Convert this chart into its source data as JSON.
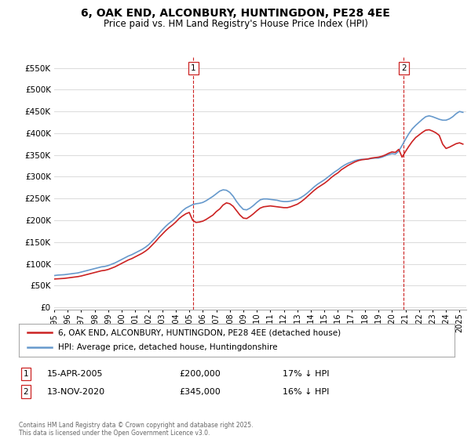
{
  "title": "6, OAK END, ALCONBURY, HUNTINGDON, PE28 4EE",
  "subtitle": "Price paid vs. HM Land Registry's House Price Index (HPI)",
  "background_color": "#ffffff",
  "plot_bg_color": "#ffffff",
  "grid_color": "#dddddd",
  "sale1_date": "15-APR-2005",
  "sale1_price": 200000,
  "sale1_hpi_diff": "17% ↓ HPI",
  "sale2_date": "13-NOV-2020",
  "sale2_price": 345000,
  "sale2_hpi_diff": "16% ↓ HPI",
  "yticks": [
    0,
    50000,
    100000,
    150000,
    200000,
    250000,
    300000,
    350000,
    400000,
    450000,
    500000,
    550000
  ],
  "ylim": [
    -5000,
    575000
  ],
  "xlim_start": 1995.0,
  "xlim_end": 2025.5,
  "xtick_years": [
    1995,
    1996,
    1997,
    1998,
    1999,
    2000,
    2001,
    2002,
    2003,
    2004,
    2005,
    2006,
    2007,
    2008,
    2009,
    2010,
    2011,
    2012,
    2013,
    2014,
    2015,
    2016,
    2017,
    2018,
    2019,
    2020,
    2021,
    2022,
    2023,
    2024,
    2025
  ],
  "hpi_color": "#6699cc",
  "price_color": "#cc2222",
  "vline_color": "#cc2222",
  "sale1_x": 2005.29,
  "sale2_x": 2020.87,
  "legend_label_price": "6, OAK END, ALCONBURY, HUNTINGDON, PE28 4EE (detached house)",
  "legend_label_hpi": "HPI: Average price, detached house, Huntingdonshire",
  "footer": "Contains HM Land Registry data © Crown copyright and database right 2025.\nThis data is licensed under the Open Government Licence v3.0.",
  "hpi_data": [
    [
      1995.0,
      73000
    ],
    [
      1995.25,
      74000
    ],
    [
      1995.5,
      74500
    ],
    [
      1995.75,
      75000
    ],
    [
      1996.0,
      76000
    ],
    [
      1996.25,
      77000
    ],
    [
      1996.5,
      78000
    ],
    [
      1996.75,
      79000
    ],
    [
      1997.0,
      81000
    ],
    [
      1997.25,
      83000
    ],
    [
      1997.5,
      85000
    ],
    [
      1997.75,
      87000
    ],
    [
      1998.0,
      89000
    ],
    [
      1998.25,
      91000
    ],
    [
      1998.5,
      93000
    ],
    [
      1998.75,
      94000
    ],
    [
      1999.0,
      96000
    ],
    [
      1999.25,
      99000
    ],
    [
      1999.5,
      102000
    ],
    [
      1999.75,
      106000
    ],
    [
      2000.0,
      110000
    ],
    [
      2000.25,
      114000
    ],
    [
      2000.5,
      118000
    ],
    [
      2000.75,
      121000
    ],
    [
      2001.0,
      125000
    ],
    [
      2001.25,
      129000
    ],
    [
      2001.5,
      133000
    ],
    [
      2001.75,
      138000
    ],
    [
      2002.0,
      144000
    ],
    [
      2002.25,
      152000
    ],
    [
      2002.5,
      160000
    ],
    [
      2002.75,
      169000
    ],
    [
      2003.0,
      178000
    ],
    [
      2003.25,
      186000
    ],
    [
      2003.5,
      193000
    ],
    [
      2003.75,
      199000
    ],
    [
      2004.0,
      206000
    ],
    [
      2004.25,
      214000
    ],
    [
      2004.5,
      222000
    ],
    [
      2004.75,
      228000
    ],
    [
      2005.0,
      232000
    ],
    [
      2005.25,
      236000
    ],
    [
      2005.5,
      238000
    ],
    [
      2005.75,
      239000
    ],
    [
      2006.0,
      241000
    ],
    [
      2006.25,
      245000
    ],
    [
      2006.5,
      250000
    ],
    [
      2006.75,
      255000
    ],
    [
      2007.0,
      261000
    ],
    [
      2007.25,
      267000
    ],
    [
      2007.5,
      270000
    ],
    [
      2007.75,
      269000
    ],
    [
      2008.0,
      264000
    ],
    [
      2008.25,
      255000
    ],
    [
      2008.5,
      243000
    ],
    [
      2008.75,
      233000
    ],
    [
      2009.0,
      225000
    ],
    [
      2009.25,
      224000
    ],
    [
      2009.5,
      228000
    ],
    [
      2009.75,
      234000
    ],
    [
      2010.0,
      241000
    ],
    [
      2010.25,
      247000
    ],
    [
      2010.5,
      249000
    ],
    [
      2010.75,
      249000
    ],
    [
      2011.0,
      248000
    ],
    [
      2011.25,
      247000
    ],
    [
      2011.5,
      246000
    ],
    [
      2011.75,
      244000
    ],
    [
      2012.0,
      243000
    ],
    [
      2012.25,
      243000
    ],
    [
      2012.5,
      244000
    ],
    [
      2012.75,
      246000
    ],
    [
      2013.0,
      248000
    ],
    [
      2013.25,
      252000
    ],
    [
      2013.5,
      257000
    ],
    [
      2013.75,
      263000
    ],
    [
      2014.0,
      270000
    ],
    [
      2014.25,
      277000
    ],
    [
      2014.5,
      283000
    ],
    [
      2014.75,
      288000
    ],
    [
      2015.0,
      293000
    ],
    [
      2015.25,
      299000
    ],
    [
      2015.5,
      305000
    ],
    [
      2015.75,
      311000
    ],
    [
      2016.0,
      316000
    ],
    [
      2016.25,
      322000
    ],
    [
      2016.5,
      327000
    ],
    [
      2016.75,
      331000
    ],
    [
      2017.0,
      334000
    ],
    [
      2017.25,
      337000
    ],
    [
      2017.5,
      339000
    ],
    [
      2017.75,
      340000
    ],
    [
      2018.0,
      340000
    ],
    [
      2018.25,
      341000
    ],
    [
      2018.5,
      342000
    ],
    [
      2018.75,
      343000
    ],
    [
      2019.0,
      343000
    ],
    [
      2019.25,
      345000
    ],
    [
      2019.5,
      348000
    ],
    [
      2019.75,
      351000
    ],
    [
      2020.0,
      353000
    ],
    [
      2020.25,
      352000
    ],
    [
      2020.5,
      359000
    ],
    [
      2020.75,
      372000
    ],
    [
      2021.0,
      386000
    ],
    [
      2021.25,
      399000
    ],
    [
      2021.5,
      410000
    ],
    [
      2021.75,
      418000
    ],
    [
      2022.0,
      425000
    ],
    [
      2022.25,
      432000
    ],
    [
      2022.5,
      438000
    ],
    [
      2022.75,
      440000
    ],
    [
      2023.0,
      438000
    ],
    [
      2023.25,
      435000
    ],
    [
      2023.5,
      432000
    ],
    [
      2023.75,
      430000
    ],
    [
      2024.0,
      430000
    ],
    [
      2024.25,
      433000
    ],
    [
      2024.5,
      438000
    ],
    [
      2024.75,
      445000
    ],
    [
      2025.0,
      450000
    ],
    [
      2025.25,
      448000
    ]
  ],
  "price_data": [
    [
      1995.0,
      65000
    ],
    [
      1995.25,
      65500
    ],
    [
      1995.5,
      66000
    ],
    [
      1995.75,
      66500
    ],
    [
      1996.0,
      67500
    ],
    [
      1996.25,
      68500
    ],
    [
      1996.5,
      69500
    ],
    [
      1996.75,
      70500
    ],
    [
      1997.0,
      72000
    ],
    [
      1997.25,
      74000
    ],
    [
      1997.5,
      76000
    ],
    [
      1997.75,
      78000
    ],
    [
      1998.0,
      80000
    ],
    [
      1998.25,
      82000
    ],
    [
      1998.5,
      84000
    ],
    [
      1998.75,
      85000
    ],
    [
      1999.0,
      87000
    ],
    [
      1999.25,
      90000
    ],
    [
      1999.5,
      93000
    ],
    [
      1999.75,
      97000
    ],
    [
      2000.0,
      101000
    ],
    [
      2000.25,
      105000
    ],
    [
      2000.5,
      109000
    ],
    [
      2000.75,
      112000
    ],
    [
      2001.0,
      116000
    ],
    [
      2001.25,
      120000
    ],
    [
      2001.5,
      124000
    ],
    [
      2001.75,
      129000
    ],
    [
      2002.0,
      135000
    ],
    [
      2002.25,
      143000
    ],
    [
      2002.5,
      151000
    ],
    [
      2002.75,
      160000
    ],
    [
      2003.0,
      168000
    ],
    [
      2003.25,
      176000
    ],
    [
      2003.5,
      183000
    ],
    [
      2003.75,
      189000
    ],
    [
      2004.0,
      196000
    ],
    [
      2004.25,
      204000
    ],
    [
      2004.5,
      210000
    ],
    [
      2004.75,
      215000
    ],
    [
      2005.0,
      218000
    ],
    [
      2005.25,
      200000
    ],
    [
      2005.5,
      195000
    ],
    [
      2005.75,
      196000
    ],
    [
      2006.0,
      198000
    ],
    [
      2006.25,
      202000
    ],
    [
      2006.5,
      207000
    ],
    [
      2006.75,
      212000
    ],
    [
      2007.0,
      220000
    ],
    [
      2007.25,
      226000
    ],
    [
      2007.5,
      235000
    ],
    [
      2007.75,
      240000
    ],
    [
      2008.0,
      238000
    ],
    [
      2008.25,
      232000
    ],
    [
      2008.5,
      222000
    ],
    [
      2008.75,
      212000
    ],
    [
      2009.0,
      205000
    ],
    [
      2009.25,
      204000
    ],
    [
      2009.5,
      209000
    ],
    [
      2009.75,
      215000
    ],
    [
      2010.0,
      222000
    ],
    [
      2010.25,
      228000
    ],
    [
      2010.5,
      231000
    ],
    [
      2010.75,
      232000
    ],
    [
      2011.0,
      233000
    ],
    [
      2011.25,
      232000
    ],
    [
      2011.5,
      231000
    ],
    [
      2011.75,
      230000
    ],
    [
      2012.0,
      229000
    ],
    [
      2012.25,
      229000
    ],
    [
      2012.5,
      231000
    ],
    [
      2012.75,
      234000
    ],
    [
      2013.0,
      237000
    ],
    [
      2013.25,
      242000
    ],
    [
      2013.5,
      248000
    ],
    [
      2013.75,
      255000
    ],
    [
      2014.0,
      262000
    ],
    [
      2014.25,
      269000
    ],
    [
      2014.5,
      275000
    ],
    [
      2014.75,
      280000
    ],
    [
      2015.0,
      285000
    ],
    [
      2015.25,
      291000
    ],
    [
      2015.5,
      298000
    ],
    [
      2015.75,
      304000
    ],
    [
      2016.0,
      309000
    ],
    [
      2016.25,
      316000
    ],
    [
      2016.5,
      321000
    ],
    [
      2016.75,
      326000
    ],
    [
      2017.0,
      330000
    ],
    [
      2017.25,
      334000
    ],
    [
      2017.5,
      337000
    ],
    [
      2017.75,
      339000
    ],
    [
      2018.0,
      340000
    ],
    [
      2018.25,
      341000
    ],
    [
      2018.5,
      343000
    ],
    [
      2018.75,
      344000
    ],
    [
      2019.0,
      345000
    ],
    [
      2019.25,
      347000
    ],
    [
      2019.5,
      350000
    ],
    [
      2019.75,
      354000
    ],
    [
      2020.0,
      357000
    ],
    [
      2020.25,
      356000
    ],
    [
      2020.5,
      363000
    ],
    [
      2020.75,
      345000
    ],
    [
      2021.0,
      358000
    ],
    [
      2021.25,
      370000
    ],
    [
      2021.5,
      381000
    ],
    [
      2021.75,
      390000
    ],
    [
      2022.0,
      396000
    ],
    [
      2022.25,
      402000
    ],
    [
      2022.5,
      407000
    ],
    [
      2022.75,
      408000
    ],
    [
      2023.0,
      405000
    ],
    [
      2023.25,
      401000
    ],
    [
      2023.5,
      395000
    ],
    [
      2023.75,
      375000
    ],
    [
      2024.0,
      365000
    ],
    [
      2024.25,
      368000
    ],
    [
      2024.5,
      372000
    ],
    [
      2024.75,
      376000
    ],
    [
      2025.0,
      378000
    ],
    [
      2025.25,
      375000
    ]
  ]
}
